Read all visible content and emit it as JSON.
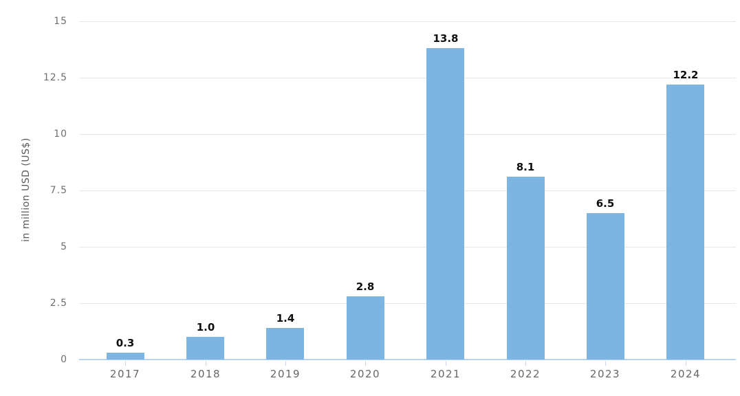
{
  "chart_data": {
    "type": "bar",
    "title": "",
    "categories": [
      "2017",
      "2018",
      "2019",
      "2020",
      "2021",
      "2022",
      "2023",
      "2024"
    ],
    "values": [
      0.3,
      1.0,
      1.4,
      2.8,
      13.8,
      8.1,
      6.5,
      12.2
    ],
    "value_labels": [
      "0.3",
      "1.0",
      "1.4",
      "2.8",
      "13.8",
      "8.1",
      "6.5",
      "12.2"
    ],
    "xlabel": "",
    "ylabel": "in million USD (US$)",
    "ylim": [
      0,
      15
    ],
    "yticks": [
      "0",
      "2.5",
      "5",
      "7.5",
      "10",
      "12.5",
      "15"
    ],
    "ytick_values": [
      0,
      2.5,
      5,
      7.5,
      10,
      12.5,
      15
    ],
    "grid": "horizontal",
    "legend": "none",
    "colors": {
      "bar_fill": "#7cb5e2",
      "gridline": "#e6e6e6",
      "axis_line": "#b9d4ee",
      "tick_label": "#6e6e6e",
      "value_label": "#0d0d0d",
      "axis_title": "#595959",
      "background": "#ffffff"
    }
  }
}
